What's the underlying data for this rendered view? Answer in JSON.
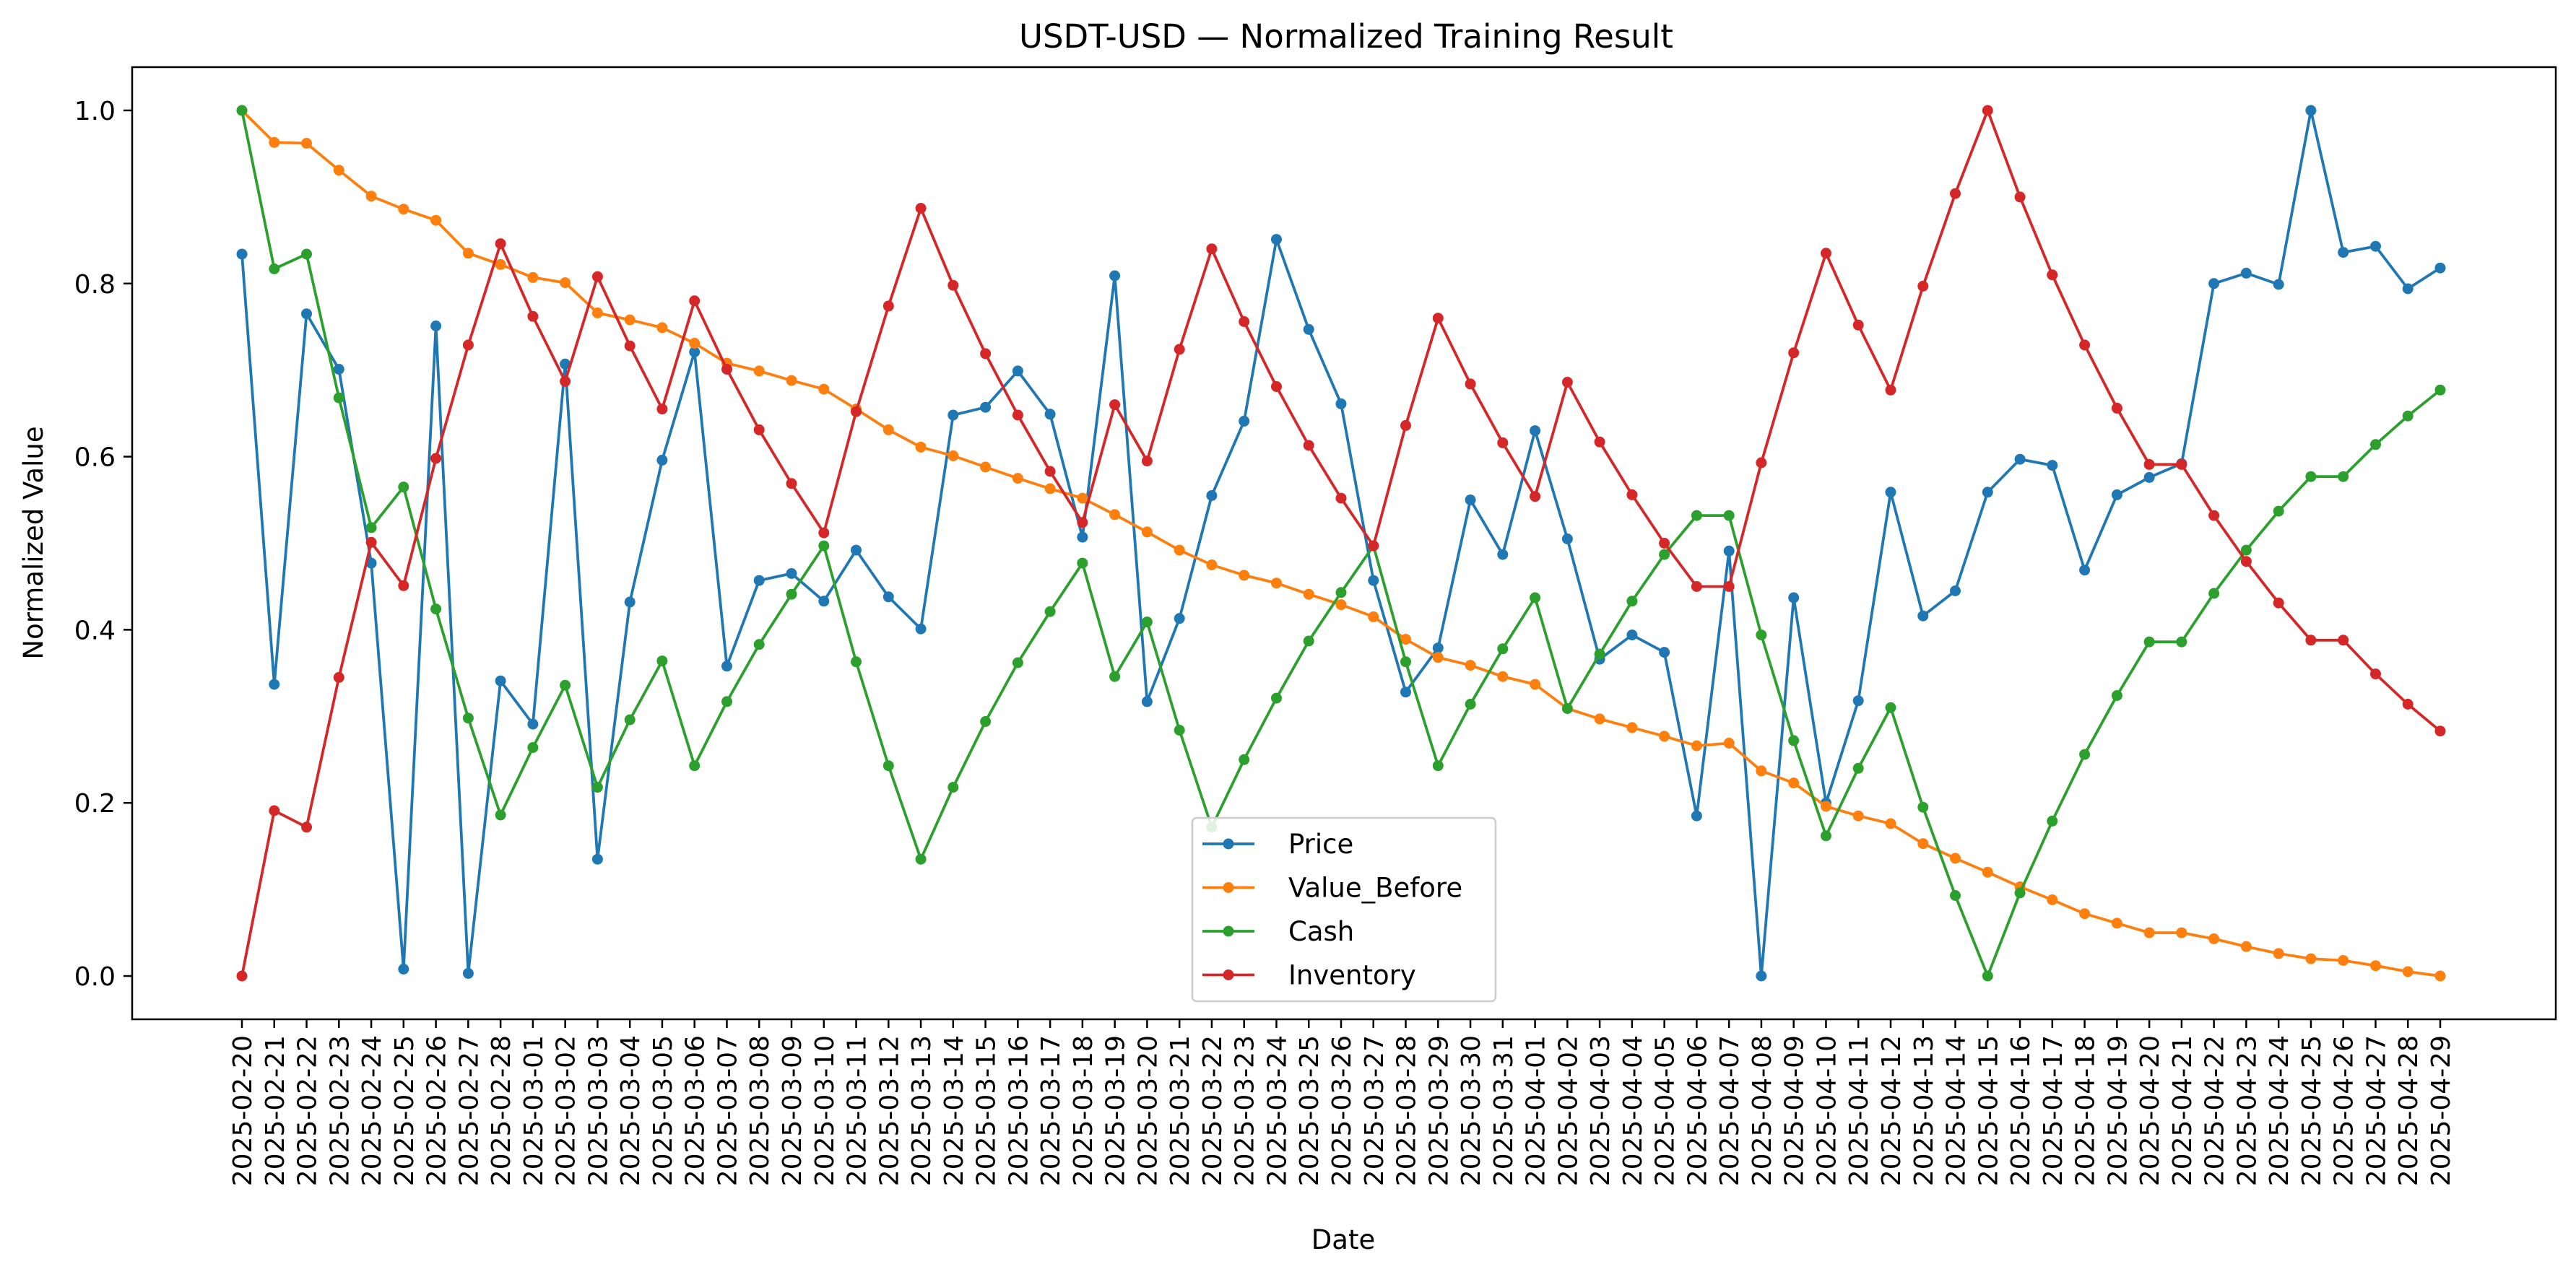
{
  "chart_data": {
    "type": "line",
    "title": "USDT-USD — Normalized Training Result",
    "xlabel": "Date",
    "ylabel": "Normalized Value",
    "ylim": [
      -0.05,
      1.05
    ],
    "yticks": [
      "0.0",
      "0.2",
      "0.4",
      "0.6",
      "0.8",
      "1.0"
    ],
    "grid": false,
    "legend_position": "lower-center",
    "x": [
      "2025-02-20",
      "2025-02-21",
      "2025-02-22",
      "2025-02-23",
      "2025-02-24",
      "2025-02-25",
      "2025-02-26",
      "2025-02-27",
      "2025-02-28",
      "2025-03-01",
      "2025-03-02",
      "2025-03-03",
      "2025-03-04",
      "2025-03-05",
      "2025-03-06",
      "2025-03-07",
      "2025-03-08",
      "2025-03-09",
      "2025-03-10",
      "2025-03-11",
      "2025-03-12",
      "2025-03-13",
      "2025-03-14",
      "2025-03-15",
      "2025-03-16",
      "2025-03-17",
      "2025-03-18",
      "2025-03-19",
      "2025-03-20",
      "2025-03-21",
      "2025-03-22",
      "2025-03-23",
      "2025-03-24",
      "2025-03-25",
      "2025-03-26",
      "2025-03-27",
      "2025-03-28",
      "2025-03-29",
      "2025-03-30",
      "2025-03-31",
      "2025-04-01",
      "2025-04-02",
      "2025-04-03",
      "2025-04-04",
      "2025-04-05",
      "2025-04-06",
      "2025-04-07",
      "2025-04-08",
      "2025-04-09",
      "2025-04-10",
      "2025-04-11",
      "2025-04-12",
      "2025-04-13",
      "2025-04-14",
      "2025-04-15",
      "2025-04-16",
      "2025-04-17",
      "2025-04-18",
      "2025-04-19",
      "2025-04-20",
      "2025-04-21",
      "2025-04-22",
      "2025-04-23",
      "2025-04-24",
      "2025-04-25",
      "2025-04-26",
      "2025-04-27",
      "2025-04-28",
      "2025-04-29"
    ],
    "series": [
      {
        "name": "Price",
        "color": "#1f77b4",
        "values": [
          0.834,
          0.337,
          0.765,
          0.701,
          0.477,
          0.008,
          0.751,
          0.003,
          0.341,
          0.291,
          0.707,
          0.135,
          0.432,
          0.596,
          0.721,
          0.358,
          0.457,
          0.465,
          0.433,
          0.492,
          0.438,
          0.401,
          0.648,
          0.657,
          0.699,
          0.649,
          0.507,
          0.809,
          0.317,
          0.413,
          0.555,
          0.641,
          0.851,
          0.747,
          0.661,
          0.457,
          0.328,
          0.379,
          0.55,
          0.487,
          0.63,
          0.505,
          0.366,
          0.394,
          0.374,
          0.185,
          0.491,
          0.0,
          0.437,
          0.2,
          0.318,
          0.559,
          0.416,
          0.445,
          0.559,
          0.597,
          0.59,
          0.469,
          0.556,
          0.576,
          0.592,
          0.8,
          0.812,
          0.799,
          1.0,
          0.836,
          0.843,
          0.794,
          0.818
        ]
      },
      {
        "name": "Value_Before",
        "color": "#ff7f0e",
        "values": [
          1.0,
          0.963,
          0.962,
          0.931,
          0.901,
          0.886,
          0.873,
          0.835,
          0.822,
          0.807,
          0.801,
          0.766,
          0.758,
          0.749,
          0.731,
          0.708,
          0.699,
          0.688,
          0.678,
          0.655,
          0.631,
          0.611,
          0.601,
          0.588,
          0.575,
          0.563,
          0.552,
          0.533,
          0.513,
          0.492,
          0.475,
          0.463,
          0.454,
          0.441,
          0.429,
          0.415,
          0.389,
          0.368,
          0.359,
          0.346,
          0.337,
          0.309,
          0.297,
          0.287,
          0.277,
          0.266,
          0.269,
          0.237,
          0.223,
          0.196,
          0.185,
          0.176,
          0.153,
          0.136,
          0.12,
          0.103,
          0.088,
          0.072,
          0.061,
          0.05,
          0.05,
          0.043,
          0.034,
          0.026,
          0.02,
          0.018,
          0.012,
          0.005,
          0.0
        ]
      },
      {
        "name": "Cash",
        "color": "#2ca02c",
        "values": [
          1.0,
          0.817,
          0.834,
          0.668,
          0.518,
          0.565,
          0.424,
          0.298,
          0.186,
          0.264,
          0.336,
          0.218,
          0.296,
          0.364,
          0.243,
          0.317,
          0.383,
          0.441,
          0.497,
          0.363,
          0.243,
          0.135,
          0.218,
          0.294,
          0.362,
          0.421,
          0.477,
          0.346,
          0.409,
          0.284,
          0.172,
          0.25,
          0.321,
          0.387,
          0.443,
          0.497,
          0.363,
          0.243,
          0.314,
          0.378,
          0.437,
          0.309,
          0.372,
          0.433,
          0.487,
          0.532,
          0.532,
          0.394,
          0.272,
          0.162,
          0.24,
          0.31,
          0.195,
          0.093,
          0.0,
          0.096,
          0.179,
          0.256,
          0.324,
          0.386,
          0.386,
          0.442,
          0.492,
          0.537,
          0.577,
          0.577,
          0.614,
          0.647,
          0.677
        ]
      },
      {
        "name": "Inventory",
        "color": "#d62728",
        "values": [
          0.0,
          0.191,
          0.172,
          0.345,
          0.501,
          0.451,
          0.598,
          0.729,
          0.846,
          0.762,
          0.687,
          0.808,
          0.728,
          0.655,
          0.78,
          0.701,
          0.631,
          0.569,
          0.512,
          0.652,
          0.774,
          0.887,
          0.798,
          0.719,
          0.648,
          0.583,
          0.524,
          0.66,
          0.595,
          0.724,
          0.84,
          0.756,
          0.681,
          0.613,
          0.552,
          0.497,
          0.636,
          0.76,
          0.684,
          0.616,
          0.554,
          0.686,
          0.617,
          0.556,
          0.5,
          0.45,
          0.45,
          0.593,
          0.72,
          0.835,
          0.752,
          0.677,
          0.797,
          0.904,
          1.0,
          0.9,
          0.81,
          0.729,
          0.656,
          0.591,
          0.591,
          0.532,
          0.479,
          0.431,
          0.388,
          0.388,
          0.349,
          0.314,
          0.283
        ]
      }
    ]
  }
}
